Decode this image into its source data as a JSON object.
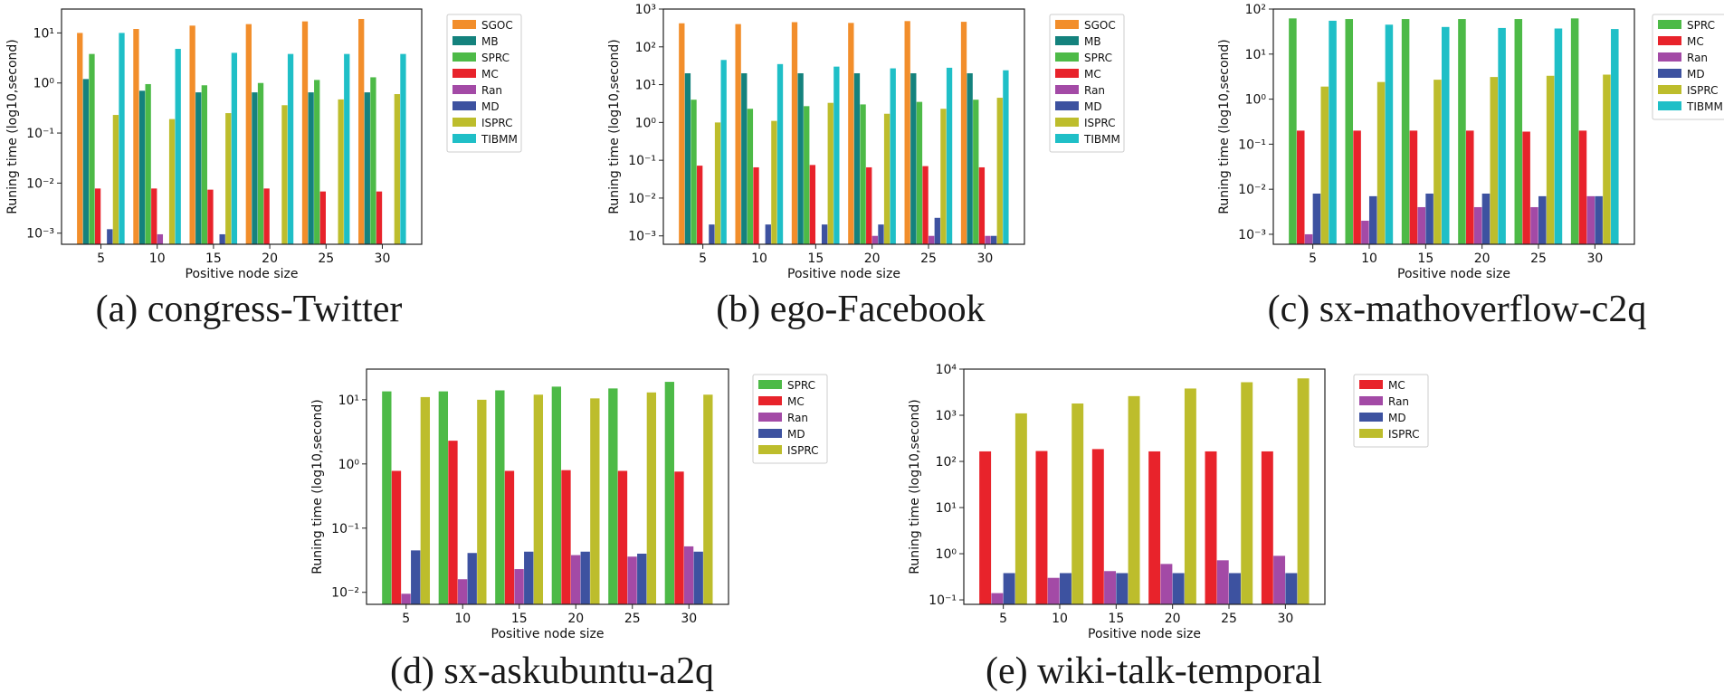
{
  "chart_data": [
    {
      "type": "bar",
      "caption": "(a) congress-Twitter",
      "xlabel": "Positive node size",
      "ylabel": "Runing time (log10,second)",
      "yscale": "log",
      "ylim": [
        0.0006,
        30
      ],
      "categories": [
        "5",
        "10",
        "15",
        "20",
        "25",
        "30"
      ],
      "legend_position": "outside-right",
      "series": [
        {
          "name": "SGOC",
          "color": "#f28e2b",
          "values": [
            10,
            12,
            14,
            15,
            17,
            19
          ]
        },
        {
          "name": "MB",
          "color": "#14827d",
          "values": [
            1.2,
            0.7,
            0.65,
            0.65,
            0.65,
            0.65
          ]
        },
        {
          "name": "SPRC",
          "color": "#4dba47",
          "values": [
            3.8,
            0.95,
            0.9,
            1.0,
            1.15,
            1.3
          ]
        },
        {
          "name": "MC",
          "color": "#e8232b",
          "values": [
            0.0078,
            0.0078,
            0.0074,
            0.0078,
            0.0068,
            0.0068
          ]
        },
        {
          "name": "Ran",
          "color": "#a34aa6",
          "values": [
            null,
            0.00095,
            null,
            null,
            null,
            null
          ]
        },
        {
          "name": "MD",
          "color": "#3d52a0",
          "values": [
            0.0012,
            null,
            0.00095,
            null,
            null,
            null
          ]
        },
        {
          "name": "ISPRC",
          "color": "#bdbd2c",
          "values": [
            0.23,
            0.19,
            0.25,
            0.36,
            0.47,
            0.6
          ]
        },
        {
          "name": "TIBMM",
          "color": "#1fbfc7",
          "values": [
            10,
            4.8,
            4.0,
            3.8,
            3.8,
            3.8
          ]
        }
      ]
    },
    {
      "type": "bar",
      "caption": "(b) ego-Facebook",
      "xlabel": "Positive node size",
      "ylabel": "Runing time (log10,second)",
      "yscale": "log",
      "ylim": [
        0.0006,
        1000
      ],
      "categories": [
        "5",
        "10",
        "15",
        "20",
        "25",
        "30"
      ],
      "legend_position": "outside-right",
      "series": [
        {
          "name": "SGOC",
          "color": "#f28e2b",
          "values": [
            420,
            400,
            450,
            430,
            480,
            460
          ]
        },
        {
          "name": "MB",
          "color": "#14827d",
          "values": [
            20,
            20,
            20,
            20,
            20,
            20
          ]
        },
        {
          "name": "SPRC",
          "color": "#4dba47",
          "values": [
            4.0,
            2.3,
            2.7,
            3.0,
            3.5,
            4.0
          ]
        },
        {
          "name": "MC",
          "color": "#e8232b",
          "values": [
            0.072,
            0.065,
            0.075,
            0.065,
            0.07,
            0.065
          ]
        },
        {
          "name": "Ran",
          "color": "#a34aa6",
          "values": [
            null,
            null,
            null,
            0.001,
            0.001,
            0.001
          ]
        },
        {
          "name": "MD",
          "color": "#3d52a0",
          "values": [
            0.002,
            0.002,
            0.002,
            0.002,
            0.003,
            0.001
          ]
        },
        {
          "name": "ISPRC",
          "color": "#bdbd2c",
          "values": [
            1.0,
            1.1,
            3.3,
            1.7,
            2.3,
            4.5
          ]
        },
        {
          "name": "TIBMM",
          "color": "#1fbfc7",
          "values": [
            45,
            35,
            30,
            27,
            28,
            24
          ]
        }
      ]
    },
    {
      "type": "bar",
      "caption": "(c) sx-mathoverflow-c2q",
      "xlabel": "Positive node size",
      "ylabel": "Runing time (log10,second)",
      "yscale": "log",
      "ylim": [
        0.0006,
        100
      ],
      "categories": [
        "5",
        "10",
        "15",
        "20",
        "25",
        "30"
      ],
      "legend_position": "outside-right",
      "series": [
        {
          "name": "SPRC",
          "color": "#4dba47",
          "values": [
            62,
            60,
            60,
            60,
            60,
            62
          ]
        },
        {
          "name": "MC",
          "color": "#e8232b",
          "values": [
            0.2,
            0.2,
            0.2,
            0.2,
            0.19,
            0.2
          ]
        },
        {
          "name": "Ran",
          "color": "#a34aa6",
          "values": [
            0.001,
            0.002,
            0.004,
            0.004,
            0.004,
            0.007
          ]
        },
        {
          "name": "MD",
          "color": "#3d52a0",
          "values": [
            0.008,
            0.007,
            0.008,
            0.008,
            0.007,
            0.007
          ]
        },
        {
          "name": "ISPRC",
          "color": "#bdbd2c",
          "values": [
            1.9,
            2.4,
            2.7,
            3.1,
            3.3,
            3.5
          ]
        },
        {
          "name": "TIBMM",
          "color": "#1fbfc7",
          "values": [
            55,
            45,
            40,
            38,
            37,
            36
          ]
        }
      ]
    },
    {
      "type": "bar",
      "caption": "(d) sx-askubuntu-a2q",
      "xlabel": "Positive node size",
      "ylabel": "Runing time (log10,second)",
      "yscale": "log",
      "ylim": [
        0.0065,
        30
      ],
      "categories": [
        "5",
        "10",
        "15",
        "20",
        "25",
        "30"
      ],
      "legend_position": "outside-right",
      "series": [
        {
          "name": "SPRC",
          "color": "#4dba47",
          "values": [
            13.5,
            13.5,
            14,
            16,
            15,
            19
          ]
        },
        {
          "name": "MC",
          "color": "#e8232b",
          "values": [
            0.78,
            2.3,
            0.78,
            0.8,
            0.78,
            0.76
          ]
        },
        {
          "name": "Ran",
          "color": "#a34aa6",
          "values": [
            0.0095,
            0.016,
            0.023,
            0.038,
            0.036,
            0.052
          ]
        },
        {
          "name": "MD",
          "color": "#3d52a0",
          "values": [
            0.045,
            0.041,
            0.043,
            0.043,
            0.04,
            0.043
          ]
        },
        {
          "name": "ISPRC",
          "color": "#bdbd2c",
          "values": [
            11,
            10,
            12,
            10.5,
            13,
            12
          ]
        }
      ]
    },
    {
      "type": "bar",
      "caption": "(e) wiki-talk-temporal",
      "xlabel": "Positive node size",
      "ylabel": "Runing time (log10,second)",
      "yscale": "log",
      "ylim": [
        0.08,
        10000
      ],
      "categories": [
        "5",
        "10",
        "15",
        "20",
        "25",
        "30"
      ],
      "legend_position": "outside-right",
      "series": [
        {
          "name": "MC",
          "color": "#e8232b",
          "values": [
            165,
            168,
            185,
            165,
            165,
            165
          ]
        },
        {
          "name": "Ran",
          "color": "#a34aa6",
          "values": [
            0.14,
            0.3,
            0.42,
            0.6,
            0.72,
            0.9
          ]
        },
        {
          "name": "MD",
          "color": "#3d52a0",
          "values": [
            0.38,
            0.38,
            0.38,
            0.38,
            0.38,
            0.38
          ]
        },
        {
          "name": "ISPRC",
          "color": "#bdbd2c",
          "values": [
            1100,
            1800,
            2600,
            3800,
            5200,
            6300
          ]
        }
      ]
    }
  ]
}
